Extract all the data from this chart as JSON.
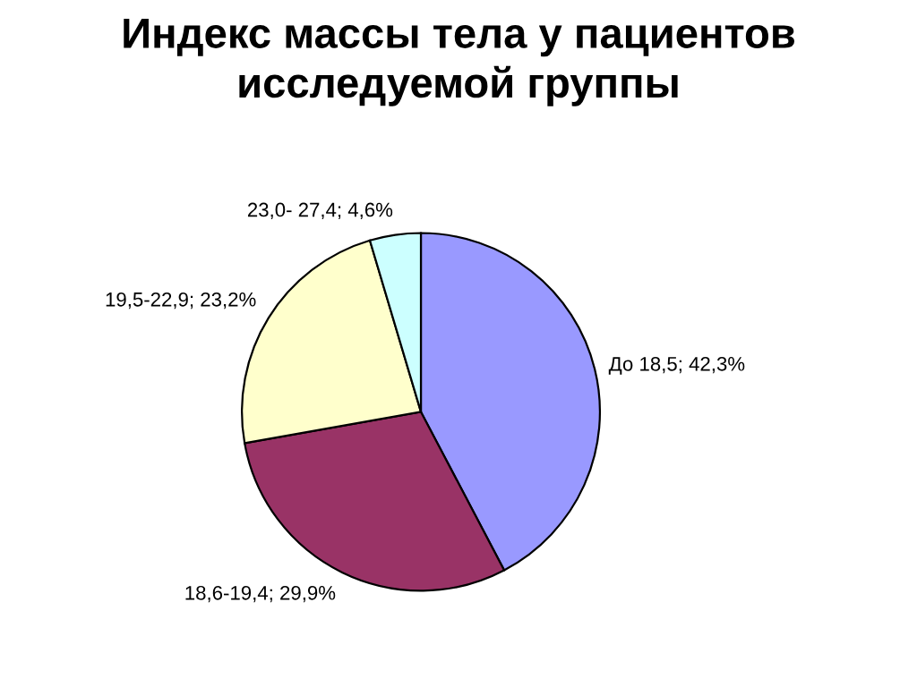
{
  "chart_data": {
    "type": "pie",
    "title": "Индекс массы тела у пациентов\nисследуемой группы",
    "categories": [
      "До 18,5",
      "18,6-19,4",
      "19,5-22,9",
      "23,0- 27,4"
    ],
    "values": [
      42.3,
      29.9,
      23.2,
      4.6
    ],
    "value_labels": [
      "42,3%",
      "29,9%",
      "23,2%",
      "4,6%"
    ],
    "colors": [
      "#9999ff",
      "#993366",
      "#ffffcc",
      "#ccffff"
    ],
    "legend": false
  }
}
